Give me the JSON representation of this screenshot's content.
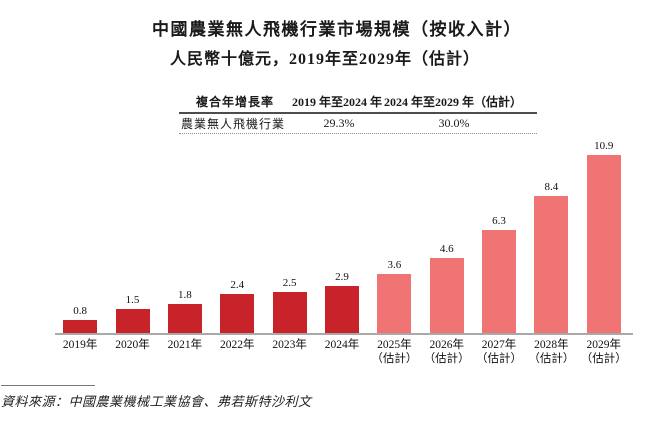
{
  "title": {
    "line1": "中國農業無人飛機行業市場規模（按收入計）",
    "line2": "人民幣十億元，2019年至2029年（估計）"
  },
  "cagr_table": {
    "col1_header": "複合年增長率",
    "col2_header": "2019 年至2024 年",
    "col3_header": "2024 年至2029 年（估計）",
    "row_label": "農業無人飛機行業",
    "col2_value": "29.3%",
    "col3_value": "30.0%"
  },
  "chart_data": {
    "type": "bar",
    "title": "中國農業無人飛機行業市場規模（按收入計）",
    "subtitle": "人民幣十億元，2019年至2029年（估計）",
    "ylabel": "人民幣十億元",
    "xlabel": "",
    "ylim": [
      0,
      12
    ],
    "grid": false,
    "legend": "none",
    "categories": [
      "2019年",
      "2020年",
      "2021年",
      "2022年",
      "2023年",
      "2024年",
      "2025年（估計）",
      "2026年（估計）",
      "2027年（估計）",
      "2028年（估計）",
      "2029年（估計）"
    ],
    "category_lines": [
      [
        "2019年"
      ],
      [
        "2020年"
      ],
      [
        "2021年"
      ],
      [
        "2022年"
      ],
      [
        "2023年"
      ],
      [
        "2024年"
      ],
      [
        "2025年",
        "（估計）"
      ],
      [
        "2026年",
        "（估計）"
      ],
      [
        "2027年",
        "（估計）"
      ],
      [
        "2028年",
        "（估計）"
      ],
      [
        "2029年",
        "（估計）"
      ]
    ],
    "values": [
      0.8,
      1.5,
      1.8,
      2.4,
      2.5,
      2.9,
      3.6,
      4.6,
      6.3,
      8.4,
      10.9
    ],
    "value_labels": [
      "0.8",
      "1.5",
      "1.8",
      "2.4",
      "2.5",
      "2.9",
      "3.6",
      "4.6",
      "6.3",
      "8.4",
      "10.9"
    ],
    "is_estimate": [
      false,
      false,
      false,
      false,
      false,
      false,
      true,
      true,
      true,
      true,
      true
    ],
    "colors": {
      "actual": "#C8232B",
      "estimate": "#F17475",
      "axis": "#A9A9A9"
    }
  },
  "source": {
    "text": "資料來源：中國農業機械工業協會、弗若斯特沙利文"
  }
}
